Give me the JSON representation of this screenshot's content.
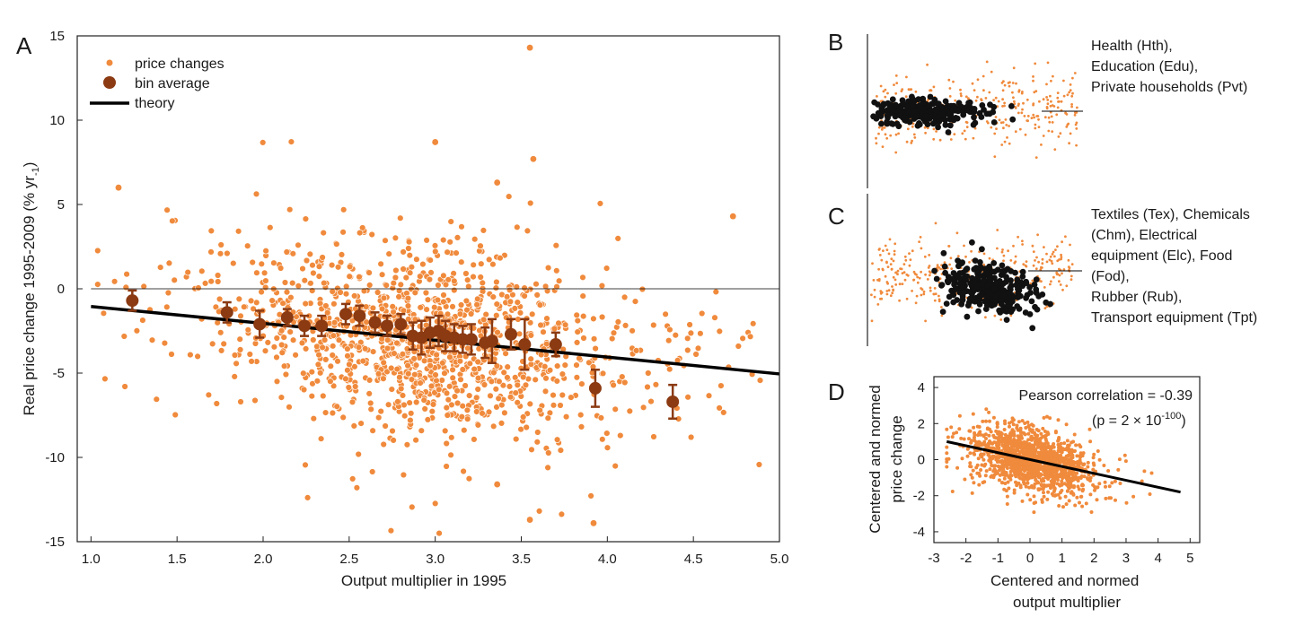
{
  "colors": {
    "price_points": "#f08a3c",
    "bin_average": "#8b3a12",
    "theory": "#000000",
    "highlight_points": "#111111",
    "zero_line": "#000000"
  },
  "panels": {
    "A": {
      "letter": "A",
      "xlabel": "Output multiplier in 1995",
      "ylabel": "Real price change 1995-2009 (% yr",
      "ylabel_sub": "-1",
      "ylabel_close": ")",
      "xticks": [
        "1.0",
        "1.5",
        "2.0",
        "2.5",
        "3.0",
        "3.5",
        "4.0",
        "4.5",
        "5.0"
      ],
      "yticks": [
        "15",
        "10",
        "5",
        "0",
        "-5",
        "-10",
        "-15"
      ],
      "legend": [
        "price changes",
        "bin average",
        "theory"
      ]
    },
    "B": {
      "letter": "B",
      "label_lines": [
        "Health (Hth),",
        "Education (Edu),",
        "Private households (Pvt)"
      ]
    },
    "C": {
      "letter": "C",
      "label_lines": [
        "Textiles (Tex), Chemicals",
        "(Chm), Electrical",
        "equipment (Elc), Food",
        "(Fod),",
        "Rubber (Rub),",
        "Transport equipment (Tpt)"
      ]
    },
    "D": {
      "letter": "D",
      "xlabel_lines": [
        "Centered and normed",
        "output multiplier"
      ],
      "ylabel_lines": [
        "Centered and normed",
        "price change"
      ],
      "xticks": [
        "-3",
        "-2",
        "-1",
        "0",
        "1",
        "2",
        "3",
        "4",
        "5"
      ],
      "yticks": [
        "4",
        "2",
        "0",
        "-2",
        "-4"
      ],
      "corr_text": "Pearson correlation = -0.39",
      "p_text_open": "(p = 2 ×  10",
      "p_text_exp": "-100",
      "p_text_close": ")"
    }
  },
  "chart_data": [
    {
      "id": "A",
      "type": "scatter",
      "xlim": [
        0.92,
        5.0
      ],
      "ylim": [
        -15,
        15
      ],
      "grid": false,
      "legend_position": "top-left",
      "zero_line": 0,
      "theory_line": {
        "x": [
          1.0,
          5.0
        ],
        "y": [
          -1.05,
          -5.05
        ]
      },
      "bin_average": {
        "x": [
          1.24,
          1.79,
          1.98,
          2.14,
          2.24,
          2.34,
          2.48,
          2.56,
          2.65,
          2.72,
          2.8,
          2.87,
          2.92,
          2.97,
          3.02,
          3.06,
          3.11,
          3.16,
          3.21,
          3.29,
          3.33,
          3.44,
          3.52,
          3.7,
          3.93,
          4.38
        ],
        "y": [
          -0.7,
          -1.4,
          -2.1,
          -1.7,
          -2.2,
          -2.2,
          -1.5,
          -1.6,
          -2.0,
          -2.2,
          -2.1,
          -2.8,
          -2.9,
          -2.6,
          -2.5,
          -2.8,
          -2.9,
          -3.0,
          -3.0,
          -3.2,
          -3.1,
          -2.7,
          -3.3,
          -3.3,
          -5.9,
          -6.7
        ],
        "err": [
          0.6,
          0.6,
          0.8,
          0.5,
          0.6,
          0.6,
          0.6,
          0.6,
          0.6,
          0.6,
          0.6,
          0.8,
          1.0,
          0.9,
          0.9,
          0.9,
          0.8,
          0.8,
          0.9,
          0.9,
          1.3,
          0.9,
          1.5,
          0.7,
          1.1,
          1.0
        ]
      },
      "price_changes_notable": {
        "x": [
          1.16,
          3.0,
          3.55,
          3.57,
          4.73,
          3.36,
          3.36,
          3.55,
          3.92
        ],
        "y": [
          6.0,
          8.7,
          14.3,
          7.7,
          4.3,
          6.3,
          -11.6,
          -13.7,
          -13.9
        ]
      }
    },
    {
      "id": "B",
      "type": "scatter",
      "reference_line": "horizontal"
    },
    {
      "id": "C",
      "type": "scatter",
      "reference_line": "horizontal"
    },
    {
      "id": "D",
      "type": "scatter",
      "xlim": [
        -3,
        5.3
      ],
      "ylim": [
        -4.6,
        4.6
      ],
      "fit_line": {
        "x": [
          -2.6,
          4.7
        ],
        "y": [
          1.0,
          -1.8
        ]
      }
    }
  ]
}
